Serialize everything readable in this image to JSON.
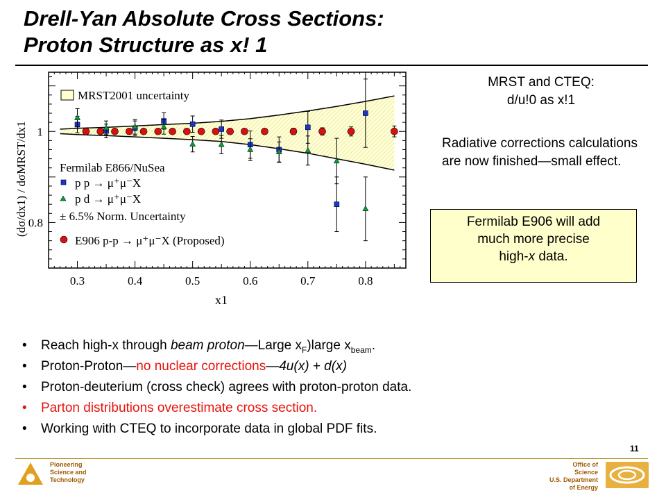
{
  "slide": {
    "title_line1": "Drell-Yan Absolute Cross Sections:",
    "title_line2": "Proton Structure as x! 1",
    "note_mrst_line1": "MRST and CTEQ:",
    "note_mrst_line2": "d/u!0 as x!1",
    "note_radiative": "Radiative corrections calculations are now finished—small effect.",
    "callout_line1": "Fermilab E906 will add",
    "callout_line2": "much more precise",
    "callout_line3_pre": "high-",
    "callout_line3_em": "x",
    "callout_line3_post": " data.",
    "page_number": "11",
    "footer_left": [
      "Pioneering",
      "Science and",
      "Technology"
    ],
    "footer_right": [
      "Office of Science",
      "U.S. Department",
      "of Energy"
    ]
  },
  "bullets": {
    "b1_pre": "Reach high-x through ",
    "b1_em": "beam proton",
    "b1_mid": "—Large x",
    "b1_sub1": "F",
    "b1_mid2": ")large x",
    "b1_sub2": "beam",
    "b1_post": ".",
    "b2_pre": "Proton-Proton—",
    "b2_red": "no nuclear corrections",
    "b2_post": "—",
    "b2_em": "4u(x) + d(x)",
    "b3": "Proton-deuterium (cross check) agrees with proton-proton data.",
    "b4": "Parton distributions overestimate cross section.",
    "b5": "Working with CTEQ to incorporate data in global PDF fits."
  },
  "chart_data": {
    "type": "scatter",
    "xlabel": "x1",
    "ylabel": "(dσ/dx1) / dσMRST/dx1",
    "xlim": [
      0.25,
      0.87
    ],
    "ylim": [
      0.7,
      1.13
    ],
    "x_ticks": [
      "0.3",
      "0.4",
      "0.5",
      "0.6",
      "0.7",
      "0.8"
    ],
    "y_ticks": [
      "0.8",
      "1"
    ],
    "legend": {
      "band": "MRST2001 uncertainty",
      "group_title": "Fermilab E866/NuSea",
      "pp": "p p → μ⁺μ⁻X",
      "pd": "p d → μ⁺μ⁻X",
      "norm": "± 6.5% Norm. Uncertainty",
      "e906": "E906 p-p → μ⁺μ⁻X (Proposed)"
    },
    "band": {
      "x": [
        0.27,
        0.3,
        0.35,
        0.4,
        0.45,
        0.5,
        0.55,
        0.6,
        0.65,
        0.7,
        0.75,
        0.8,
        0.85
      ],
      "upper": [
        1.005,
        1.007,
        1.009,
        1.012,
        1.015,
        1.018,
        1.022,
        1.028,
        1.036,
        1.045,
        1.055,
        1.066,
        1.078
      ],
      "lower": [
        0.995,
        0.993,
        0.991,
        0.988,
        0.985,
        0.982,
        0.978,
        0.971,
        0.962,
        0.952,
        0.94,
        0.928,
        0.915
      ]
    },
    "series": [
      {
        "name": "p p → μ⁺μ⁻X",
        "color": "#1536d8",
        "marker": "square",
        "x": [
          0.3,
          0.35,
          0.4,
          0.45,
          0.5,
          0.55,
          0.6,
          0.65,
          0.7,
          0.75,
          0.8
        ],
        "y": [
          1.015,
          1.001,
          1.007,
          1.023,
          1.016,
          1.005,
          0.971,
          0.96,
          1.009,
          0.84,
          1.04
        ],
        "err": [
          0.018,
          0.015,
          0.016,
          0.018,
          0.018,
          0.02,
          0.03,
          0.028,
          0.035,
          0.06,
          0.075
        ]
      },
      {
        "name": "p d → μ⁺μ⁻X",
        "color": "#0c9a3a",
        "marker": "triangle",
        "x": [
          0.3,
          0.35,
          0.4,
          0.45,
          0.5,
          0.55,
          0.6,
          0.65,
          0.7,
          0.75,
          0.8
        ],
        "y": [
          1.03,
          1.008,
          1.01,
          1.01,
          0.972,
          0.971,
          0.96,
          0.955,
          0.958,
          0.935,
          0.83
        ],
        "err": [
          0.02,
          0.015,
          0.016,
          0.016,
          0.017,
          0.02,
          0.024,
          0.022,
          0.032,
          0.05,
          0.07
        ]
      },
      {
        "name": "E906 p-p → μ⁺μ⁻X (Proposed)",
        "color": "#d81010",
        "marker": "circle",
        "x": [
          0.315,
          0.34,
          0.365,
          0.39,
          0.415,
          0.44,
          0.465,
          0.49,
          0.515,
          0.54,
          0.565,
          0.59,
          0.625,
          0.675,
          0.725,
          0.775,
          0.85
        ],
        "y": [
          1.0,
          1.0,
          1.0,
          1.0,
          1.0,
          1.0,
          1.0,
          1.0,
          1.0,
          1.0,
          1.0,
          1.0,
          1.0,
          1.0,
          1.0,
          1.0,
          1.0
        ],
        "err": [
          0.004,
          0.004,
          0.004,
          0.004,
          0.004,
          0.004,
          0.004,
          0.004,
          0.005,
          0.005,
          0.005,
          0.006,
          0.006,
          0.007,
          0.008,
          0.01,
          0.012
        ]
      }
    ]
  }
}
